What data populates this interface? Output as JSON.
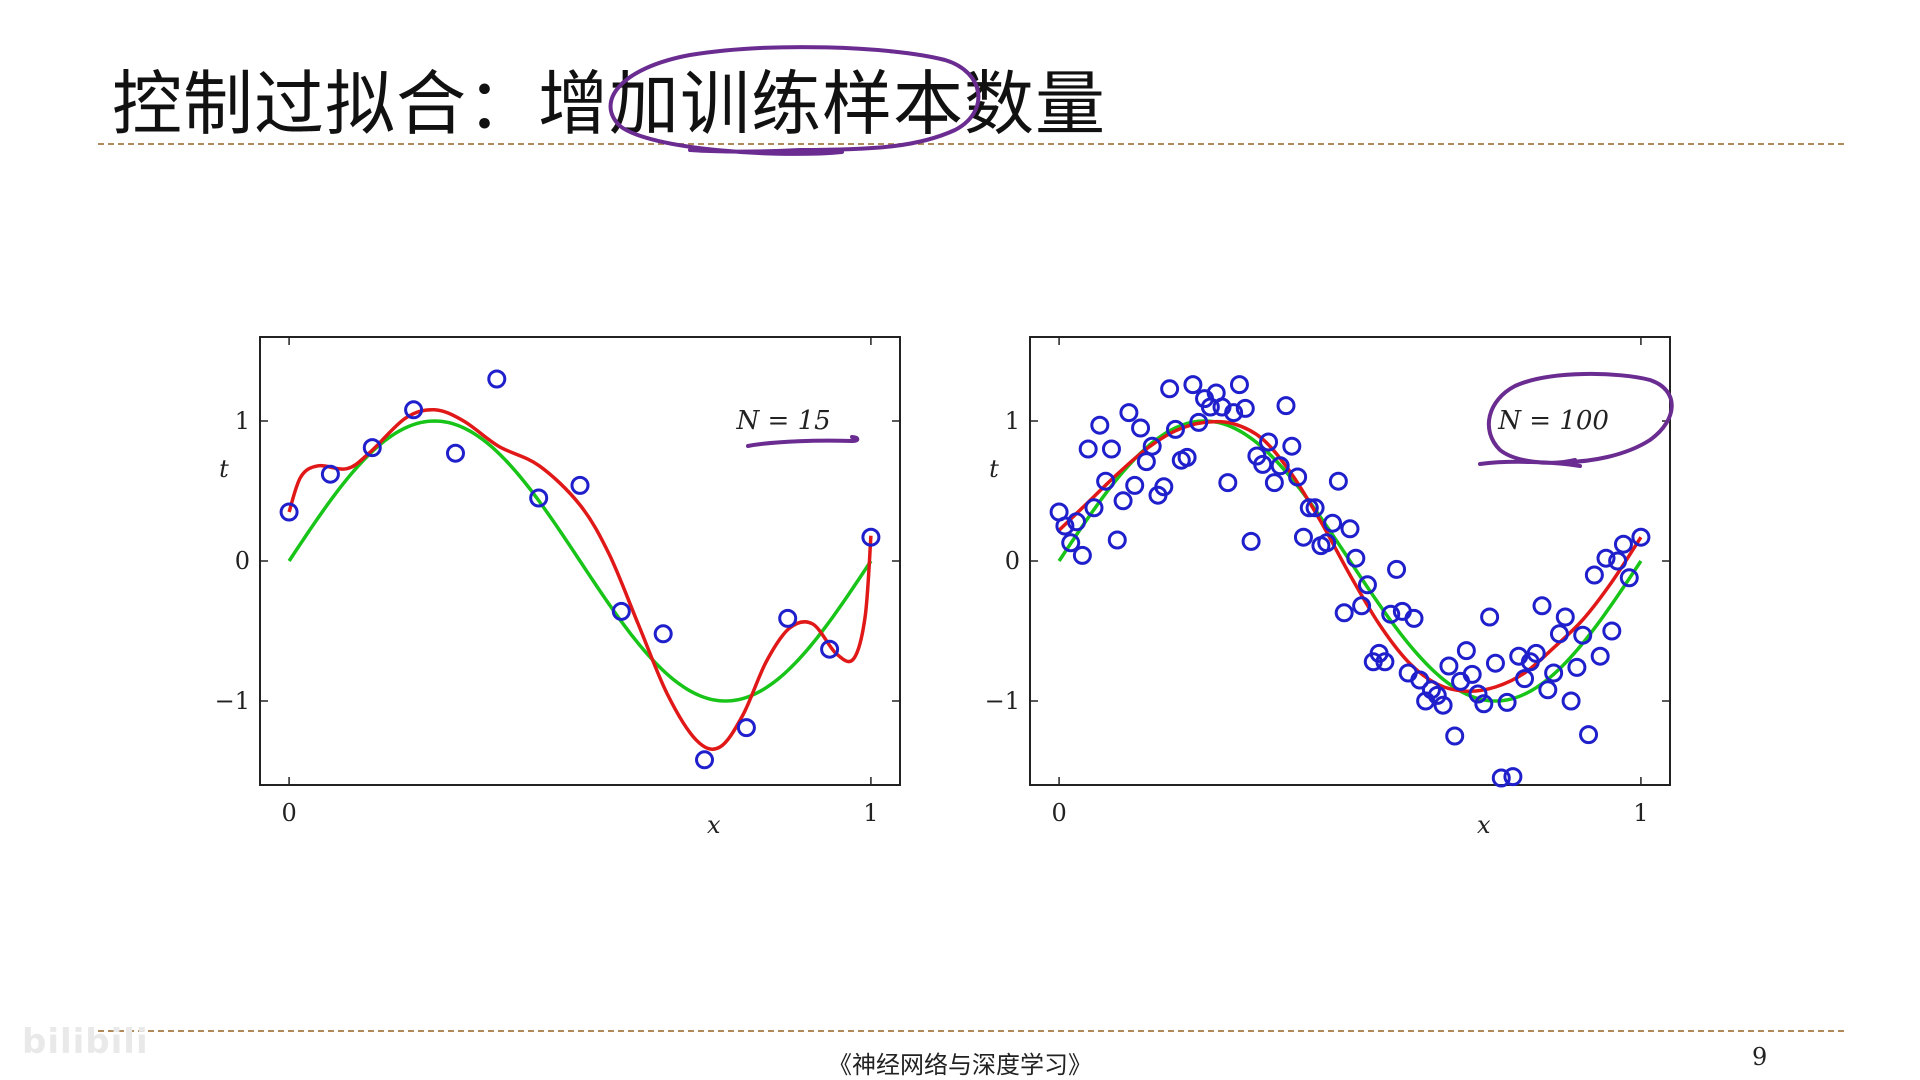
{
  "slide": {
    "title": "控制过拟合：增加训练样本数量",
    "footer": "《神经网络与深度学习》",
    "page_number": "9",
    "watermark": "bilibili"
  },
  "colors": {
    "points": "#1f1fcc",
    "true_function": "#19c419",
    "fitted_curve": "#e01818",
    "annotation": "#6a2c91",
    "rule": "#b08a5a"
  },
  "chart_data": [
    {
      "type": "scatter",
      "annotation": "N = 15",
      "xlabel": "x",
      "ylabel": "t",
      "xlim": [
        -0.05,
        1.05
      ],
      "ylim": [
        -1.6,
        1.6
      ],
      "xticks": [
        0,
        1
      ],
      "xtick_labels": [
        "0",
        "1"
      ],
      "yticks": [
        -1,
        0,
        1
      ],
      "ytick_labels": [
        "−1",
        "0",
        "1"
      ],
      "points": [
        [
          0.0,
          0.35
        ],
        [
          0.071,
          0.62
        ],
        [
          0.143,
          0.81
        ],
        [
          0.214,
          1.08
        ],
        [
          0.286,
          0.77
        ],
        [
          0.357,
          1.3
        ],
        [
          0.429,
          0.45
        ],
        [
          0.5,
          0.54
        ],
        [
          0.571,
          -0.36
        ],
        [
          0.643,
          -0.52
        ],
        [
          0.714,
          -1.42
        ],
        [
          0.786,
          -1.19
        ],
        [
          0.857,
          -0.41
        ],
        [
          0.929,
          -0.63
        ],
        [
          1.0,
          0.17
        ]
      ],
      "true_curve": {
        "function": "sin(2πx)",
        "name": ""
      },
      "fitted_curve": {
        "x": [
          0.0,
          0.02,
          0.05,
          0.1,
          0.14,
          0.2,
          0.25,
          0.3,
          0.36,
          0.43,
          0.5,
          0.55,
          0.6,
          0.65,
          0.7,
          0.74,
          0.78,
          0.82,
          0.86,
          0.9,
          0.94,
          0.97,
          0.99,
          1.0
        ],
        "y": [
          0.35,
          0.6,
          0.68,
          0.66,
          0.78,
          1.02,
          1.08,
          1.0,
          0.82,
          0.68,
          0.4,
          0.05,
          -0.45,
          -0.95,
          -1.28,
          -1.33,
          -1.1,
          -0.72,
          -0.48,
          -0.45,
          -0.66,
          -0.7,
          -0.4,
          0.18
        ]
      }
    },
    {
      "type": "scatter",
      "annotation": "N = 100",
      "xlabel": "x",
      "ylabel": "t",
      "xlim": [
        -0.05,
        1.05
      ],
      "ylim": [
        -1.6,
        1.6
      ],
      "xticks": [
        0,
        1
      ],
      "xtick_labels": [
        "0",
        "1"
      ],
      "yticks": [
        -1,
        0,
        1
      ],
      "ytick_labels": [
        "−1",
        "0",
        "1"
      ],
      "points": [
        [
          0.0,
          0.35
        ],
        [
          0.01,
          0.25
        ],
        [
          0.02,
          0.13
        ],
        [
          0.03,
          0.28
        ],
        [
          0.04,
          0.04
        ],
        [
          0.05,
          0.8
        ],
        [
          0.06,
          0.38
        ],
        [
          0.07,
          0.97
        ],
        [
          0.08,
          0.57
        ],
        [
          0.09,
          0.8
        ],
        [
          0.1,
          0.15
        ],
        [
          0.11,
          0.43
        ],
        [
          0.12,
          1.06
        ],
        [
          0.13,
          0.54
        ],
        [
          0.14,
          0.95
        ],
        [
          0.15,
          0.71
        ],
        [
          0.16,
          0.82
        ],
        [
          0.17,
          0.47
        ],
        [
          0.18,
          0.53
        ],
        [
          0.19,
          1.23
        ],
        [
          0.2,
          0.94
        ],
        [
          0.21,
          0.72
        ],
        [
          0.22,
          0.74
        ],
        [
          0.23,
          1.26
        ],
        [
          0.24,
          0.99
        ],
        [
          0.25,
          1.16
        ],
        [
          0.26,
          1.1
        ],
        [
          0.27,
          1.2
        ],
        [
          0.28,
          1.1
        ],
        [
          0.29,
          0.56
        ],
        [
          0.3,
          1.06
        ],
        [
          0.31,
          1.26
        ],
        [
          0.32,
          1.09
        ],
        [
          0.33,
          0.14
        ],
        [
          0.34,
          0.75
        ],
        [
          0.35,
          0.69
        ],
        [
          0.36,
          0.85
        ],
        [
          0.37,
          0.56
        ],
        [
          0.38,
          0.68
        ],
        [
          0.39,
          1.11
        ],
        [
          0.4,
          0.82
        ],
        [
          0.41,
          0.6
        ],
        [
          0.42,
          0.17
        ],
        [
          0.43,
          0.38
        ],
        [
          0.44,
          0.38
        ],
        [
          0.45,
          0.11
        ],
        [
          0.46,
          0.13
        ],
        [
          0.47,
          0.27
        ],
        [
          0.48,
          0.57
        ],
        [
          0.49,
          -0.37
        ],
        [
          0.5,
          0.23
        ],
        [
          0.51,
          0.02
        ],
        [
          0.52,
          -0.32
        ],
        [
          0.53,
          -0.17
        ],
        [
          0.54,
          -0.72
        ],
        [
          0.55,
          -0.66
        ],
        [
          0.56,
          -0.72
        ],
        [
          0.57,
          -0.38
        ],
        [
          0.58,
          -0.06
        ],
        [
          0.59,
          -0.36
        ],
        [
          0.6,
          -0.8
        ],
        [
          0.61,
          -0.41
        ],
        [
          0.62,
          -0.85
        ],
        [
          0.63,
          -1.0
        ],
        [
          0.64,
          -0.92
        ],
        [
          0.65,
          -0.96
        ],
        [
          0.66,
          -1.03
        ],
        [
          0.67,
          -0.75
        ],
        [
          0.68,
          -1.25
        ],
        [
          0.69,
          -0.86
        ],
        [
          0.7,
          -0.64
        ],
        [
          0.71,
          -0.81
        ],
        [
          0.72,
          -0.95
        ],
        [
          0.73,
          -1.02
        ],
        [
          0.74,
          -0.4
        ],
        [
          0.75,
          -0.73
        ],
        [
          0.76,
          -1.55
        ],
        [
          0.77,
          -1.01
        ],
        [
          0.78,
          -1.54
        ],
        [
          0.79,
          -0.68
        ],
        [
          0.8,
          -0.84
        ],
        [
          0.81,
          -0.72
        ],
        [
          0.82,
          -0.66
        ],
        [
          0.83,
          -0.32
        ],
        [
          0.84,
          -0.92
        ],
        [
          0.85,
          -0.8
        ],
        [
          0.86,
          -0.52
        ],
        [
          0.87,
          -0.4
        ],
        [
          0.88,
          -1.0
        ],
        [
          0.89,
          -0.76
        ],
        [
          0.9,
          -0.53
        ],
        [
          0.91,
          -1.24
        ],
        [
          0.92,
          -0.1
        ],
        [
          0.93,
          -0.68
        ],
        [
          0.94,
          0.02
        ],
        [
          0.95,
          -0.5
        ],
        [
          0.96,
          0.0
        ],
        [
          0.97,
          0.12
        ],
        [
          0.98,
          -0.12
        ],
        [
          1.0,
          0.17
        ]
      ],
      "true_curve": {
        "function": "sin(2πx)",
        "name": ""
      },
      "fitted_curve": {
        "x": [
          0.0,
          0.05,
          0.1,
          0.15,
          0.2,
          0.25,
          0.3,
          0.35,
          0.4,
          0.45,
          0.5,
          0.55,
          0.6,
          0.65,
          0.7,
          0.75,
          0.8,
          0.85,
          0.9,
          0.95,
          1.0
        ],
        "y": [
          0.22,
          0.42,
          0.62,
          0.8,
          0.93,
          0.99,
          0.98,
          0.87,
          0.62,
          0.28,
          -0.1,
          -0.45,
          -0.72,
          -0.88,
          -0.93,
          -0.9,
          -0.8,
          -0.62,
          -0.42,
          -0.15,
          0.17
        ]
      }
    }
  ]
}
